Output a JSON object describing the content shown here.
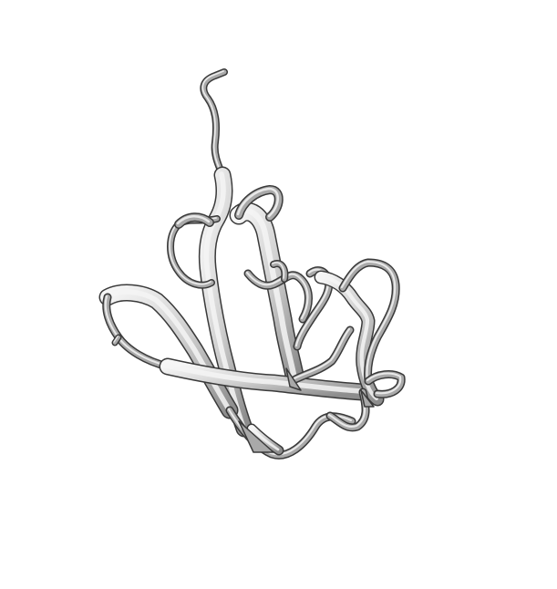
{
  "figure": {
    "kind": "protein-ribbon-cartoon",
    "background_color": "#ffffff",
    "ribbon_shade_dark": "#3a3a3a",
    "ribbon_shade_mid": "#a9a9a9",
    "ribbon_shade_light": "#f4f4f4"
  }
}
